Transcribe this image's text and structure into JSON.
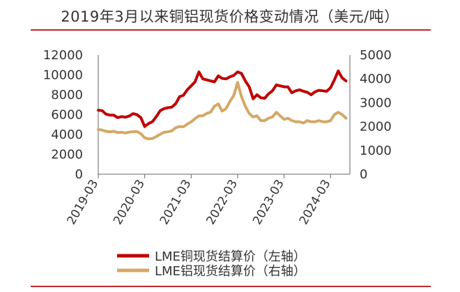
{
  "title": "2019年3月以来铜铝现货价格变动情况（美元/吨）",
  "colors": {
    "copper": "#c00000",
    "aluminum": "#d4a866",
    "rule": "#c0272d",
    "axis": "#666666"
  },
  "chart_data": {
    "type": "line",
    "title": "2019年3月以来铜铝现货价格变动情况（美元/吨）",
    "x_ticks": [
      "2019-03",
      "2020-03",
      "2021-03",
      "2022-03",
      "2023-03",
      "2024-03"
    ],
    "y_left": {
      "ticks": [
        "0",
        "2000",
        "4000",
        "6000",
        "8000",
        "10000",
        "12000"
      ],
      "range": [
        0,
        12000
      ]
    },
    "y_right": {
      "ticks": [
        "0",
        "1000",
        "2000",
        "3000",
        "4000",
        "5000"
      ],
      "range": [
        0,
        5000
      ]
    },
    "grid": false,
    "legend_position": "bottom",
    "series": [
      {
        "name": "LME铜现货结算价（左轴）",
        "axis": "left",
        "points": [
          [
            "2019-03",
            6450
          ],
          [
            "2019-04",
            6400
          ],
          [
            "2019-05",
            6050
          ],
          [
            "2019-06",
            5950
          ],
          [
            "2019-07",
            5950
          ],
          [
            "2019-08",
            5700
          ],
          [
            "2019-09",
            5800
          ],
          [
            "2019-10",
            5750
          ],
          [
            "2019-11",
            5850
          ],
          [
            "2019-12",
            6100
          ],
          [
            "2020-01",
            6000
          ],
          [
            "2020-02",
            5700
          ],
          [
            "2020-03",
            4800
          ],
          [
            "2020-04",
            5100
          ],
          [
            "2020-05",
            5300
          ],
          [
            "2020-06",
            5800
          ],
          [
            "2020-07",
            6400
          ],
          [
            "2020-08",
            6600
          ],
          [
            "2020-09",
            6700
          ],
          [
            "2020-10",
            6750
          ],
          [
            "2020-11",
            7100
          ],
          [
            "2020-12",
            7800
          ],
          [
            "2021-01",
            7950
          ],
          [
            "2021-02",
            8500
          ],
          [
            "2021-03",
            8900
          ],
          [
            "2021-04",
            9300
          ],
          [
            "2021-05",
            10300
          ],
          [
            "2021-06",
            9600
          ],
          [
            "2021-07",
            9500
          ],
          [
            "2021-08",
            9400
          ],
          [
            "2021-09",
            9300
          ],
          [
            "2021-10",
            9900
          ],
          [
            "2021-11",
            9650
          ],
          [
            "2021-12",
            9600
          ],
          [
            "2022-01",
            9800
          ],
          [
            "2022-02",
            9950
          ],
          [
            "2022-03",
            10300
          ],
          [
            "2022-04",
            10150
          ],
          [
            "2022-05",
            9400
          ],
          [
            "2022-06",
            8800
          ],
          [
            "2022-07",
            7600
          ],
          [
            "2022-08",
            8000
          ],
          [
            "2022-09",
            7700
          ],
          [
            "2022-10",
            7650
          ],
          [
            "2022-11",
            8100
          ],
          [
            "2022-12",
            8400
          ],
          [
            "2023-01",
            9000
          ],
          [
            "2023-02",
            8900
          ],
          [
            "2023-03",
            8800
          ],
          [
            "2023-04",
            8800
          ],
          [
            "2023-05",
            8200
          ],
          [
            "2023-06",
            8400
          ],
          [
            "2023-07",
            8500
          ],
          [
            "2023-08",
            8350
          ],
          [
            "2023-09",
            8250
          ],
          [
            "2023-10",
            8000
          ],
          [
            "2023-11",
            8300
          ],
          [
            "2023-12",
            8450
          ],
          [
            "2024-01",
            8400
          ],
          [
            "2024-02",
            8350
          ],
          [
            "2024-03",
            8700
          ],
          [
            "2024-04",
            9500
          ],
          [
            "2024-05",
            10400
          ],
          [
            "2024-06",
            9700
          ],
          [
            "2024-07",
            9400
          ]
        ]
      },
      {
        "name": "LME铝现货结算价（右轴）",
        "axis": "right",
        "points": [
          [
            "2019-03",
            1880
          ],
          [
            "2019-04",
            1850
          ],
          [
            "2019-05",
            1800
          ],
          [
            "2019-06",
            1780
          ],
          [
            "2019-07",
            1800
          ],
          [
            "2019-08",
            1750
          ],
          [
            "2019-09",
            1760
          ],
          [
            "2019-10",
            1730
          ],
          [
            "2019-11",
            1770
          ],
          [
            "2019-12",
            1780
          ],
          [
            "2020-01",
            1790
          ],
          [
            "2020-02",
            1700
          ],
          [
            "2020-03",
            1530
          ],
          [
            "2020-04",
            1480
          ],
          [
            "2020-05",
            1500
          ],
          [
            "2020-06",
            1580
          ],
          [
            "2020-07",
            1680
          ],
          [
            "2020-08",
            1760
          ],
          [
            "2020-09",
            1780
          ],
          [
            "2020-10",
            1820
          ],
          [
            "2020-11",
            1950
          ],
          [
            "2020-12",
            2000
          ],
          [
            "2021-01",
            1990
          ],
          [
            "2021-02",
            2100
          ],
          [
            "2021-03",
            2200
          ],
          [
            "2021-04",
            2330
          ],
          [
            "2021-05",
            2450
          ],
          [
            "2021-06",
            2450
          ],
          [
            "2021-07",
            2550
          ],
          [
            "2021-08",
            2600
          ],
          [
            "2021-09",
            2850
          ],
          [
            "2021-10",
            2950
          ],
          [
            "2021-11",
            2650
          ],
          [
            "2021-12",
            2750
          ],
          [
            "2022-01",
            3050
          ],
          [
            "2022-02",
            3300
          ],
          [
            "2022-03",
            3850
          ],
          [
            "2022-04",
            3250
          ],
          [
            "2022-05",
            2850
          ],
          [
            "2022-06",
            2550
          ],
          [
            "2022-07",
            2400
          ],
          [
            "2022-08",
            2450
          ],
          [
            "2022-09",
            2250
          ],
          [
            "2022-10",
            2250
          ],
          [
            "2022-11",
            2350
          ],
          [
            "2022-12",
            2400
          ],
          [
            "2023-01",
            2600
          ],
          [
            "2023-02",
            2450
          ],
          [
            "2023-03",
            2300
          ],
          [
            "2023-04",
            2350
          ],
          [
            "2023-05",
            2250
          ],
          [
            "2023-06",
            2200
          ],
          [
            "2023-07",
            2200
          ],
          [
            "2023-08",
            2150
          ],
          [
            "2023-09",
            2250
          ],
          [
            "2023-10",
            2200
          ],
          [
            "2023-11",
            2200
          ],
          [
            "2023-12",
            2250
          ],
          [
            "2024-01",
            2200
          ],
          [
            "2024-02",
            2200
          ],
          [
            "2024-03",
            2250
          ],
          [
            "2024-04",
            2500
          ],
          [
            "2024-05",
            2600
          ],
          [
            "2024-06",
            2500
          ],
          [
            "2024-07",
            2350
          ]
        ]
      }
    ]
  }
}
